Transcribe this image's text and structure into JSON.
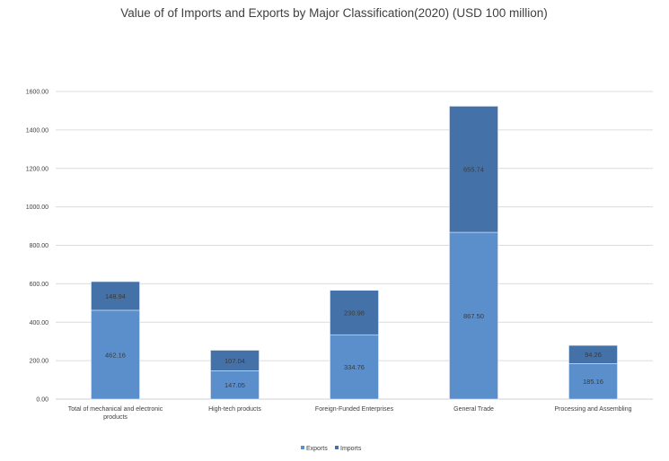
{
  "chart_data": {
    "type": "bar",
    "stacked": true,
    "title": "Value of of Imports and Exports by Major Classification(2020)  (USD 100 million)",
    "categories": [
      [
        "Total of mechanical and electronic",
        "products"
      ],
      [
        "High-tech products"
      ],
      [
        "Foreign-Funded Enterprises"
      ],
      [
        "General Trade"
      ],
      [
        "Processing and Assembling"
      ]
    ],
    "series": [
      {
        "name": "Exports",
        "values": [
          462.16,
          147.05,
          334.76,
          867.5,
          185.16
        ],
        "color": "#5b8fcc"
      },
      {
        "name": "Imports",
        "values": [
          148.94,
          107.04,
          230.98,
          655.74,
          94.26
        ],
        "color": "#4472a8"
      }
    ],
    "ylim": [
      0,
      1600
    ],
    "yticks": [
      "0.00",
      "200.00",
      "400.00",
      "600.00",
      "800.00",
      "1000.00",
      "1200.00",
      "1400.00",
      "1600.00"
    ],
    "grid": true,
    "legend": "bottom"
  }
}
